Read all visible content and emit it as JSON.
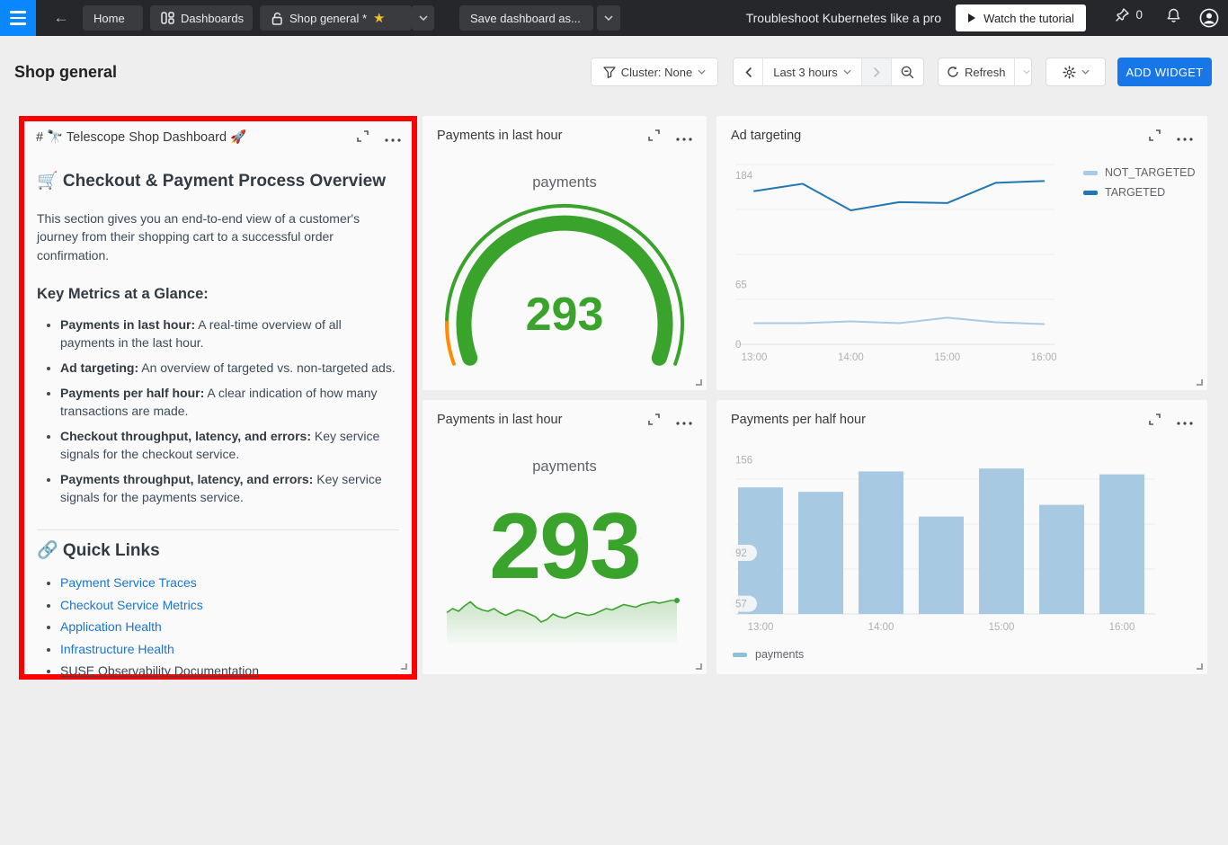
{
  "navbar": {
    "tabs": {
      "home": "Home",
      "dashboards": "Dashboards",
      "current": "Shop general *"
    },
    "save_button": "Save dashboard as...",
    "promo_text": "Troubleshoot Kubernetes like a pro",
    "tutorial_button": "Watch the tutorial",
    "pin_count": "0"
  },
  "header": {
    "title": "Shop general",
    "cluster_filter": "Cluster: None",
    "time_range": "Last 3 hours",
    "refresh_label": "Refresh",
    "add_widget_label": "ADD WIDGET"
  },
  "widgets": {
    "markdown": {
      "title": "# 🔭 Telescope Shop Dashboard 🚀",
      "heading": "🛒 Checkout & Payment Process Overview",
      "intro": "This section gives you an end-to-end view of a customer's journey from their shopping cart to a successful order confirmation.",
      "metrics_heading": "Key Metrics at a Glance:",
      "metrics": [
        {
          "label": "Payments in last hour:",
          "text": " A real-time overview of all payments in the last hour."
        },
        {
          "label": "Ad targeting:",
          "text": " An overview of targeted vs. non-targeted ads."
        },
        {
          "label": "Payments per half hour:",
          "text": " A clear indication of how many transactions are made."
        },
        {
          "label": "Checkout throughput, latency, and errors:",
          "text": " Key service signals for the checkout service."
        },
        {
          "label": "Payments throughput, latency, and errors:",
          "text": " Key service signals for the payments service."
        }
      ],
      "links_heading": "🔗 Quick Links",
      "links": [
        {
          "label": "Payment Service Traces"
        },
        {
          "label": "Checkout Service Metrics"
        },
        {
          "label": "Application Health"
        },
        {
          "label": "Infrastructure Health"
        },
        {
          "label": "SUSE Observability Documentation"
        }
      ]
    },
    "gauge": {
      "title": "Payments in last hour",
      "series_label": "payments",
      "value": "293"
    },
    "ad": {
      "title": "Ad targeting"
    },
    "number": {
      "title": "Payments in last hour",
      "series_label": "payments",
      "value": "293"
    },
    "bar": {
      "title": "Payments per half hour"
    }
  },
  "chart_data": [
    {
      "id": "payments_gauge",
      "type": "gauge",
      "title": "Payments in last hour",
      "series": "payments",
      "value": 293,
      "color_green": "#3aa32c",
      "color_orange": "#ff8c00"
    },
    {
      "id": "ad_targeting",
      "type": "line",
      "title": "Ad targeting",
      "x": [
        "13:00",
        "13:30",
        "14:00",
        "14:30",
        "15:00",
        "15:30",
        "16:00"
      ],
      "series": [
        {
          "name": "NOT_TARGETED",
          "color": "#a6cbe3",
          "values": [
            23,
            23,
            25,
            23,
            29,
            24,
            22
          ]
        },
        {
          "name": "TARGETED",
          "color": "#2077b4",
          "values": [
            167,
            175,
            146,
            155,
            154,
            176,
            178
          ]
        }
      ],
      "ylim": [
        0,
        196
      ],
      "yticks": [
        184,
        65,
        0
      ],
      "grid": true,
      "legend_position": "right"
    },
    {
      "id": "payments_sparkline",
      "type": "area",
      "title": "Payments in last hour",
      "series": "payments",
      "current_value": 293,
      "color": "#3aa32c",
      "values": [
        284,
        287,
        285,
        289,
        292,
        288,
        286,
        285,
        287,
        284,
        282,
        284,
        286,
        285,
        283,
        281,
        277,
        279,
        283,
        281,
        280,
        282,
        284,
        283,
        282,
        283,
        285,
        287,
        286,
        288,
        290,
        289,
        288,
        290,
        291,
        292,
        291,
        292,
        293,
        293
      ]
    },
    {
      "id": "payments_per_half_hour",
      "type": "bar",
      "title": "Payments per half hour",
      "categories": [
        "13:00",
        "13:30",
        "14:00",
        "14:30",
        "15:00",
        "15:30",
        "16:00"
      ],
      "values": [
        137,
        134,
        148,
        117,
        150,
        125,
        146
      ],
      "bar_color": "#a7c9e2",
      "legend": "payments",
      "ylim": [
        50,
        160
      ],
      "yticks": [
        156,
        92,
        57
      ],
      "grid": true,
      "legend_position": "bottom"
    }
  ]
}
